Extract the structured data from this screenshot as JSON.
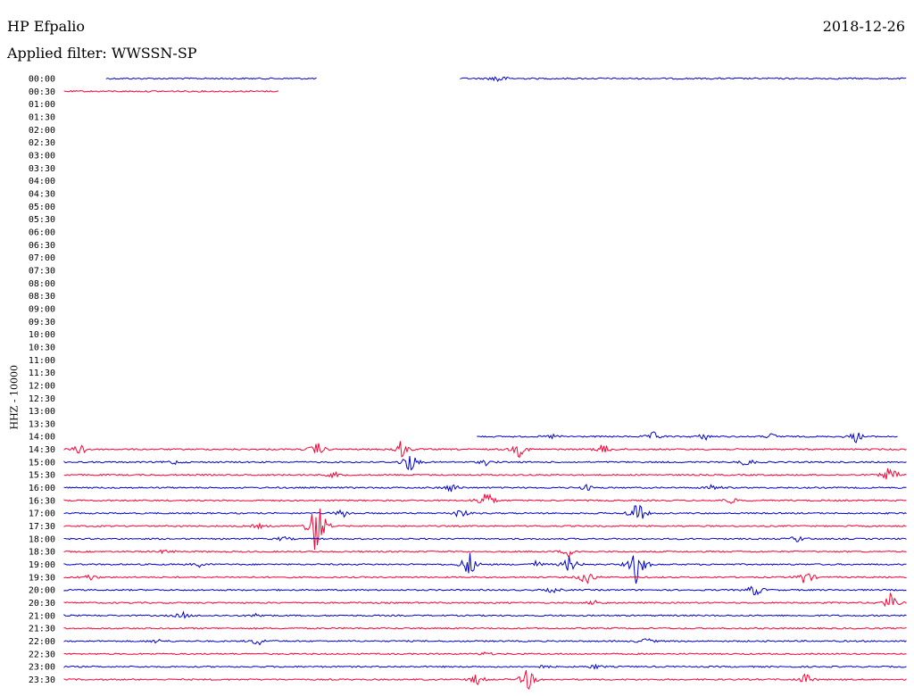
{
  "header": {
    "station": "HP Efpalio",
    "date": "2018-12-26",
    "filter": "Applied filter: WWSSN-SP"
  },
  "chart_data": {
    "type": "line",
    "title": "HP Efpalio",
    "date": "2018-12-26",
    "subtitle": "Applied filter: WWSSN-SP",
    "ylabel": "HHZ - 10000",
    "xlabel": "",
    "row_interval_minutes": 30,
    "colors": [
      "#0000cc",
      "#ff0033"
    ],
    "rows": [
      {
        "label": "00:00",
        "color": "#0000cc",
        "segments": [
          [
            0.05,
            0.3
          ],
          [
            0.47,
            1.0
          ]
        ],
        "events": [
          [
            0.515,
            0.9
          ]
        ]
      },
      {
        "label": "00:30",
        "color": "#ff0033",
        "segments": [
          [
            0.0,
            0.255
          ]
        ],
        "events": []
      },
      {
        "label": "01:00",
        "segments": [],
        "events": []
      },
      {
        "label": "01:30",
        "segments": [],
        "events": []
      },
      {
        "label": "02:00",
        "segments": [],
        "events": []
      },
      {
        "label": "02:30",
        "segments": [],
        "events": []
      },
      {
        "label": "03:00",
        "segments": [],
        "events": []
      },
      {
        "label": "03:30",
        "segments": [],
        "events": []
      },
      {
        "label": "04:00",
        "segments": [],
        "events": []
      },
      {
        "label": "04:30",
        "segments": [],
        "events": []
      },
      {
        "label": "05:00",
        "segments": [],
        "events": []
      },
      {
        "label": "05:30",
        "segments": [],
        "events": []
      },
      {
        "label": "06:00",
        "segments": [],
        "events": []
      },
      {
        "label": "06:30",
        "segments": [],
        "events": []
      },
      {
        "label": "07:00",
        "segments": [],
        "events": []
      },
      {
        "label": "07:30",
        "segments": [],
        "events": []
      },
      {
        "label": "08:00",
        "segments": [],
        "events": []
      },
      {
        "label": "08:30",
        "segments": [],
        "events": []
      },
      {
        "label": "09:00",
        "segments": [],
        "events": []
      },
      {
        "label": "09:30",
        "segments": [],
        "events": []
      },
      {
        "label": "10:00",
        "segments": [],
        "events": []
      },
      {
        "label": "10:30",
        "segments": [],
        "events": []
      },
      {
        "label": "11:00",
        "segments": [],
        "events": []
      },
      {
        "label": "11:30",
        "segments": [],
        "events": []
      },
      {
        "label": "12:00",
        "segments": [],
        "events": []
      },
      {
        "label": "12:30",
        "segments": [],
        "events": []
      },
      {
        "label": "13:00",
        "segments": [],
        "events": []
      },
      {
        "label": "13:30",
        "segments": [],
        "events": []
      },
      {
        "label": "14:00",
        "color": "#0000cc",
        "segments": [
          [
            0.49,
            0.99
          ]
        ],
        "events": [
          [
            0.58,
            0.4
          ],
          [
            0.7,
            0.8
          ],
          [
            0.76,
            0.6
          ],
          [
            0.84,
            0.5
          ],
          [
            0.94,
            1.0
          ]
        ]
      },
      {
        "label": "14:30",
        "color": "#ff0033",
        "segments": [
          [
            0.0,
            1.0
          ]
        ],
        "events": [
          [
            0.02,
            1.2
          ],
          [
            0.3,
            1.3
          ],
          [
            0.4,
            1.6
          ],
          [
            0.54,
            1.3
          ],
          [
            0.64,
            1.0
          ]
        ]
      },
      {
        "label": "15:00",
        "color": "#0000cc",
        "segments": [
          [
            0.0,
            1.0
          ]
        ],
        "events": [
          [
            0.13,
            0.4
          ],
          [
            0.41,
            2.0
          ],
          [
            0.5,
            0.5
          ],
          [
            0.81,
            0.8
          ]
        ]
      },
      {
        "label": "15:30",
        "color": "#ff0033",
        "segments": [
          [
            0.0,
            1.0
          ]
        ],
        "events": [
          [
            0.32,
            0.5
          ],
          [
            0.98,
            1.6
          ]
        ]
      },
      {
        "label": "16:00",
        "color": "#0000cc",
        "segments": [
          [
            0.0,
            1.0
          ]
        ],
        "events": [
          [
            0.46,
            0.8
          ],
          [
            0.62,
            0.5
          ],
          [
            0.77,
            0.6
          ]
        ]
      },
      {
        "label": "16:30",
        "color": "#ff0033",
        "segments": [
          [
            0.0,
            1.0
          ]
        ],
        "events": [
          [
            0.5,
            2.2
          ],
          [
            0.79,
            0.6
          ]
        ]
      },
      {
        "label": "17:00",
        "color": "#0000cc",
        "segments": [
          [
            0.0,
            1.0
          ]
        ],
        "events": [
          [
            0.33,
            0.8
          ],
          [
            0.47,
            1.0
          ],
          [
            0.68,
            2.5
          ]
        ]
      },
      {
        "label": "17:30",
        "color": "#ff0033",
        "segments": [
          [
            0.0,
            1.0
          ]
        ],
        "events": [
          [
            0.23,
            0.4
          ],
          [
            0.3,
            7.0
          ]
        ]
      },
      {
        "label": "18:00",
        "color": "#0000cc",
        "segments": [
          [
            0.0,
            1.0
          ]
        ],
        "events": [
          [
            0.26,
            0.4
          ],
          [
            0.87,
            0.6
          ]
        ]
      },
      {
        "label": "18:30",
        "color": "#ff0033",
        "segments": [
          [
            0.0,
            1.0
          ]
        ],
        "events": [
          [
            0.12,
            0.4
          ],
          [
            0.6,
            1.0
          ]
        ]
      },
      {
        "label": "19:00",
        "color": "#0000cc",
        "segments": [
          [
            0.0,
            1.0
          ]
        ],
        "events": [
          [
            0.16,
            0.4
          ],
          [
            0.48,
            2.5
          ],
          [
            0.56,
            0.6
          ],
          [
            0.6,
            1.6
          ],
          [
            0.68,
            4.0
          ]
        ]
      },
      {
        "label": "19:30",
        "color": "#ff0033",
        "segments": [
          [
            0.0,
            1.0
          ]
        ],
        "events": [
          [
            0.03,
            0.6
          ],
          [
            0.62,
            1.6
          ],
          [
            0.88,
            1.5
          ]
        ]
      },
      {
        "label": "20:00",
        "color": "#0000cc",
        "segments": [
          [
            0.0,
            1.0
          ]
        ],
        "events": [
          [
            0.58,
            0.5
          ],
          [
            0.82,
            1.2
          ]
        ]
      },
      {
        "label": "20:30",
        "color": "#ff0033",
        "segments": [
          [
            0.0,
            1.0
          ]
        ],
        "events": [
          [
            0.63,
            0.5
          ],
          [
            0.98,
            1.6
          ]
        ]
      },
      {
        "label": "21:00",
        "color": "#0000cc",
        "segments": [
          [
            0.0,
            1.0
          ]
        ],
        "events": [
          [
            0.14,
            0.6
          ],
          [
            0.23,
            0.4
          ]
        ]
      },
      {
        "label": "21:30",
        "color": "#ff0033",
        "segments": [
          [
            0.0,
            1.0
          ]
        ],
        "events": []
      },
      {
        "label": "22:00",
        "color": "#0000cc",
        "segments": [
          [
            0.0,
            1.0
          ]
        ],
        "events": [
          [
            0.11,
            0.4
          ],
          [
            0.23,
            0.8
          ],
          [
            0.69,
            0.6
          ]
        ]
      },
      {
        "label": "22:30",
        "color": "#ff0033",
        "segments": [
          [
            0.0,
            1.0
          ]
        ],
        "events": [
          [
            0.5,
            0.3
          ]
        ]
      },
      {
        "label": "23:00",
        "color": "#0000cc",
        "segments": [
          [
            0.0,
            1.0
          ]
        ],
        "events": [
          [
            0.57,
            0.3
          ],
          [
            0.63,
            0.4
          ]
        ]
      },
      {
        "label": "23:30",
        "color": "#ff0033",
        "segments": [
          [
            0.0,
            1.0
          ]
        ],
        "events": [
          [
            0.49,
            1.0
          ],
          [
            0.55,
            2.0
          ],
          [
            0.88,
            1.0
          ]
        ]
      }
    ]
  }
}
